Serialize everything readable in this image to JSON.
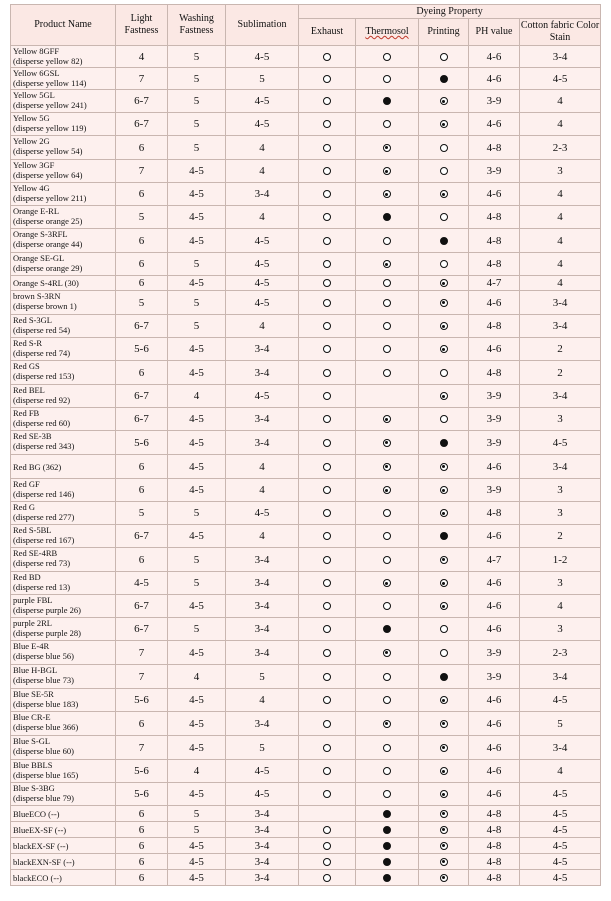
{
  "headers": {
    "product_name": "Product Name",
    "light_fastness": "Light Fastness",
    "washing_fastness": "Washing Fastness",
    "sublimation": "Sublimation",
    "dyeing_property": "Dyeing Property",
    "exhaust": "Exhaust",
    "thermosol": "Thermosol",
    "printing": "Printing",
    "ph_value": "PH value",
    "cotton_stain": "Cotton fabric Color Stain"
  },
  "symbol_legend": {
    "open": "open-circle-icon",
    "full": "filled-circle-icon",
    "dot": "dotted-circle-icon"
  },
  "rows": [
    {
      "name": [
        "Yellow 8GFF",
        "(disperse yellow 82)"
      ],
      "light": "4",
      "wash": "5",
      "sub": "4-5",
      "ex": "open",
      "th": "open",
      "pr": "open",
      "ph": "4-6",
      "stain": "3-4"
    },
    {
      "name": [
        "Yellow 6GSL",
        "(disperse yellow 114)"
      ],
      "light": "7",
      "wash": "5",
      "sub": "5",
      "ex": "open",
      "th": "open",
      "pr": "full",
      "ph": "4-6",
      "stain": "4-5"
    },
    {
      "name": [
        "Yellow 5GL",
        "(disperse yellow 241)"
      ],
      "light": "6-7",
      "wash": "5",
      "sub": "4-5",
      "ex": "open",
      "th": "full",
      "pr": "dot",
      "ph": "3-9",
      "stain": "4"
    },
    {
      "name": [
        "Yellow 5G",
        "(disperse yellow 119)"
      ],
      "light": "6-7",
      "wash": "5",
      "sub": "4-5",
      "ex": "open",
      "th": "open",
      "pr": "dot",
      "ph": "4-6",
      "stain": "4"
    },
    {
      "name": [
        "Yellow 2G",
        "(disperse yellow 54)"
      ],
      "light": "6",
      "wash": "5",
      "sub": "4",
      "ex": "open",
      "th": "dot",
      "pr": "open",
      "ph": "4-8",
      "stain": "2-3"
    },
    {
      "name": [
        "Yellow 3GF",
        "(disperse yellow 64)"
      ],
      "light": "7",
      "wash": "4-5",
      "sub": "4",
      "ex": "open",
      "th": "dot",
      "pr": "open",
      "ph": "3-9",
      "stain": "3"
    },
    {
      "name": [
        "Yellow 4G",
        "(disperse yellow 211)"
      ],
      "light": "6",
      "wash": "4-5",
      "sub": "3-4",
      "ex": "open",
      "th": "dot",
      "pr": "dot",
      "ph": "4-6",
      "stain": "4"
    },
    {
      "name": [
        "Orange E-RL",
        "(disperse orange 25)"
      ],
      "light": "5",
      "wash": "4-5",
      "sub": "4",
      "ex": "open",
      "th": "full",
      "pr": "open",
      "ph": "4-8",
      "stain": "4"
    },
    {
      "name": [
        "Orange S-3RFL",
        "(disperse orange 44)"
      ],
      "light": "6",
      "wash": "4-5",
      "sub": "4-5",
      "ex": "open",
      "th": "open",
      "pr": "full",
      "ph": "4-8",
      "stain": "4"
    },
    {
      "name": [
        "Orange SE-GL",
        "(disperse orange 29)"
      ],
      "light": "6",
      "wash": "5",
      "sub": "4-5",
      "ex": "open",
      "th": "dot",
      "pr": "open",
      "ph": "4-8",
      "stain": "4"
    },
    {
      "name": [
        "Orange S-4RL (30)"
      ],
      "light": "6",
      "wash": "4-5",
      "sub": "4-5",
      "ex": "open",
      "th": "open",
      "pr": "dot",
      "ph": "4-7",
      "stain": "4"
    },
    {
      "name": [
        "brown S-3RN",
        "(disperse brown 1)"
      ],
      "light": "5",
      "wash": "5",
      "sub": "4-5",
      "ex": "open",
      "th": "open",
      "pr": "dot",
      "ph": "4-6",
      "stain": "3-4"
    },
    {
      "name": [
        "Red S-3GL",
        "(disperse red 54)"
      ],
      "light": "6-7",
      "wash": "5",
      "sub": "4",
      "ex": "open",
      "th": "open",
      "pr": "dot",
      "ph": "4-8",
      "stain": "3-4"
    },
    {
      "name": [
        "Red S-R",
        "(disperse red 74)"
      ],
      "light": "5-6",
      "wash": "4-5",
      "sub": "3-4",
      "ex": "open",
      "th": "open",
      "pr": "dot",
      "ph": "4-6",
      "stain": "2"
    },
    {
      "name": [
        "Red GS",
        "(disperse red 153)"
      ],
      "light": "6",
      "wash": "4-5",
      "sub": "3-4",
      "ex": "open",
      "th": "open",
      "pr": "open",
      "ph": "4-8",
      "stain": "2"
    },
    {
      "name": [
        "Red BEL",
        "(disperse red 92)"
      ],
      "light": "6-7",
      "wash": "4",
      "sub": "4-5",
      "ex": "open",
      "th": "",
      "pr": "dot",
      "ph": "3-9",
      "stain": "3-4"
    },
    {
      "name": [
        "Red FB",
        "(disperse red 60)"
      ],
      "light": "6-7",
      "wash": "4-5",
      "sub": "3-4",
      "ex": "open",
      "th": "dot",
      "pr": "open",
      "ph": "3-9",
      "stain": "3"
    },
    {
      "name": [
        "Red SE-3B",
        "(disperse red 343)"
      ],
      "light": "5-6",
      "wash": "4-5",
      "sub": "3-4",
      "ex": "open",
      "th": "dot",
      "pr": "full",
      "ph": "3-9",
      "stain": "4-5"
    },
    {
      "name": [
        "Red BG (362)"
      ],
      "light": "6",
      "wash": "4-5",
      "sub": "4",
      "ex": "open",
      "th": "dot",
      "pr": "dot",
      "ph": "4-6",
      "stain": "3-4"
    },
    {
      "name": [
        "Red GF",
        "(disperse red 146)"
      ],
      "light": "6",
      "wash": "4-5",
      "sub": "4",
      "ex": "open",
      "th": "dot",
      "pr": "dot",
      "ph": "3-9",
      "stain": "3"
    },
    {
      "name": [
        "Red G",
        "(disperse red 277)"
      ],
      "light": "5",
      "wash": "5",
      "sub": "4-5",
      "ex": "open",
      "th": "open",
      "pr": "dot",
      "ph": "4-8",
      "stain": "3"
    },
    {
      "name": [
        "Red S-5BL",
        "(disperse red 167)"
      ],
      "light": "6-7",
      "wash": "4-5",
      "sub": "4",
      "ex": "open",
      "th": "open",
      "pr": "full",
      "ph": "4-6",
      "stain": "2"
    },
    {
      "name": [
        "Red SE-4RB",
        "(disperse red 73)"
      ],
      "light": "6",
      "wash": "5",
      "sub": "3-4",
      "ex": "open",
      "th": "open",
      "pr": "dot",
      "ph": "4-7",
      "stain": "1-2"
    },
    {
      "name": [
        "Red BD",
        "(disperse red 13)"
      ],
      "light": "4-5",
      "wash": "5",
      "sub": "3-4",
      "ex": "open",
      "th": "dot",
      "pr": "dot",
      "ph": "4-6",
      "stain": "3"
    },
    {
      "name": [
        "purple FBL",
        "(disperse purple 26)"
      ],
      "light": "6-7",
      "wash": "4-5",
      "sub": "3-4",
      "ex": "open",
      "th": "open",
      "pr": "dot",
      "ph": "4-6",
      "stain": "4"
    },
    {
      "name": [
        "purple 2RL",
        "(disperse purple 28)"
      ],
      "light": "6-7",
      "wash": "5",
      "sub": "3-4",
      "ex": "open",
      "th": "full",
      "pr": "open",
      "ph": "4-6",
      "stain": "3"
    },
    {
      "name": [
        "Blue E-4R",
        "(disperse blue 56)"
      ],
      "light": "7",
      "wash": "4-5",
      "sub": "3-4",
      "ex": "open",
      "th": "dot",
      "pr": "open",
      "ph": "3-9",
      "stain": "2-3"
    },
    {
      "name": [
        "Blue H-BGL",
        "(disperse blue 73)"
      ],
      "light": "7",
      "wash": "4",
      "sub": "5",
      "ex": "open",
      "th": "open",
      "pr": "full",
      "ph": "3-9",
      "stain": "3-4"
    },
    {
      "name": [
        "Blue SE-5R",
        "(disperse blue 183)"
      ],
      "light": "5-6",
      "wash": "4-5",
      "sub": "4",
      "ex": "open",
      "th": "open",
      "pr": "dot",
      "ph": "4-6",
      "stain": "4-5"
    },
    {
      "name": [
        "Blue CR-E",
        "(disperse blue 366)"
      ],
      "light": "6",
      "wash": "4-5",
      "sub": "3-4",
      "ex": "open",
      "th": "dot",
      "pr": "dot",
      "ph": "4-6",
      "stain": "5"
    },
    {
      "name": [
        "Blue S-GL",
        "(disperse blue 60)"
      ],
      "light": "7",
      "wash": "4-5",
      "sub": "5",
      "ex": "open",
      "th": "open",
      "pr": "dot",
      "ph": "4-6",
      "stain": "3-4"
    },
    {
      "name": [
        "Blue BBLS",
        "(disperse blue 165)"
      ],
      "light": "5-6",
      "wash": "4",
      "sub": "4-5",
      "ex": "open",
      "th": "open",
      "pr": "dot",
      "ph": "4-6",
      "stain": "4"
    },
    {
      "name": [
        "Blue S-3BG",
        "(disperse blue 79)"
      ],
      "light": "5-6",
      "wash": "4-5",
      "sub": "4-5",
      "ex": "open",
      "th": "open",
      "pr": "dot",
      "ph": "4-6",
      "stain": "4-5"
    },
    {
      "name": [
        "BlueECO (--)"
      ],
      "light": "6",
      "wash": "5",
      "sub": "3-4",
      "ex": "",
      "th": "full",
      "pr": "dot",
      "ph": "4-8",
      "stain": "4-5"
    },
    {
      "name": [
        "BlueEX-SF (--)"
      ],
      "light": "6",
      "wash": "5",
      "sub": "3-4",
      "ex": "open",
      "th": "full",
      "pr": "dot",
      "ph": "4-8",
      "stain": "4-5"
    },
    {
      "name": [
        "blackEX-SF (--)"
      ],
      "light": "6",
      "wash": "4-5",
      "sub": "3-4",
      "ex": "open",
      "th": "full",
      "pr": "dot",
      "ph": "4-8",
      "stain": "4-5"
    },
    {
      "name": [
        "blackEXN-SF (--)"
      ],
      "light": "6",
      "wash": "4-5",
      "sub": "3-4",
      "ex": "open",
      "th": "full",
      "pr": "dot",
      "ph": "4-8",
      "stain": "4-5"
    },
    {
      "name": [
        "blackECO (--)"
      ],
      "light": "6",
      "wash": "4-5",
      "sub": "3-4",
      "ex": "open",
      "th": "full",
      "pr": "dot",
      "ph": "4-8",
      "stain": "4-5"
    }
  ]
}
